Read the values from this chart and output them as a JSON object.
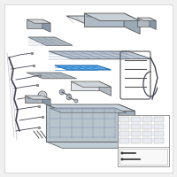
{
  "bg": "#ffffff",
  "fig_bg": "#f0f0f0",
  "edge_color": "#555555",
  "edge_light": "#888888",
  "gray_light": "#d0d4d8",
  "gray_mid": "#b0b8c0",
  "gray_dark": "#8898a8",
  "blue_hl": "#6ab8e8",
  "blue_hl_dark": "#2266aa",
  "white": "#ffffff",
  "wire_color": "#444455"
}
